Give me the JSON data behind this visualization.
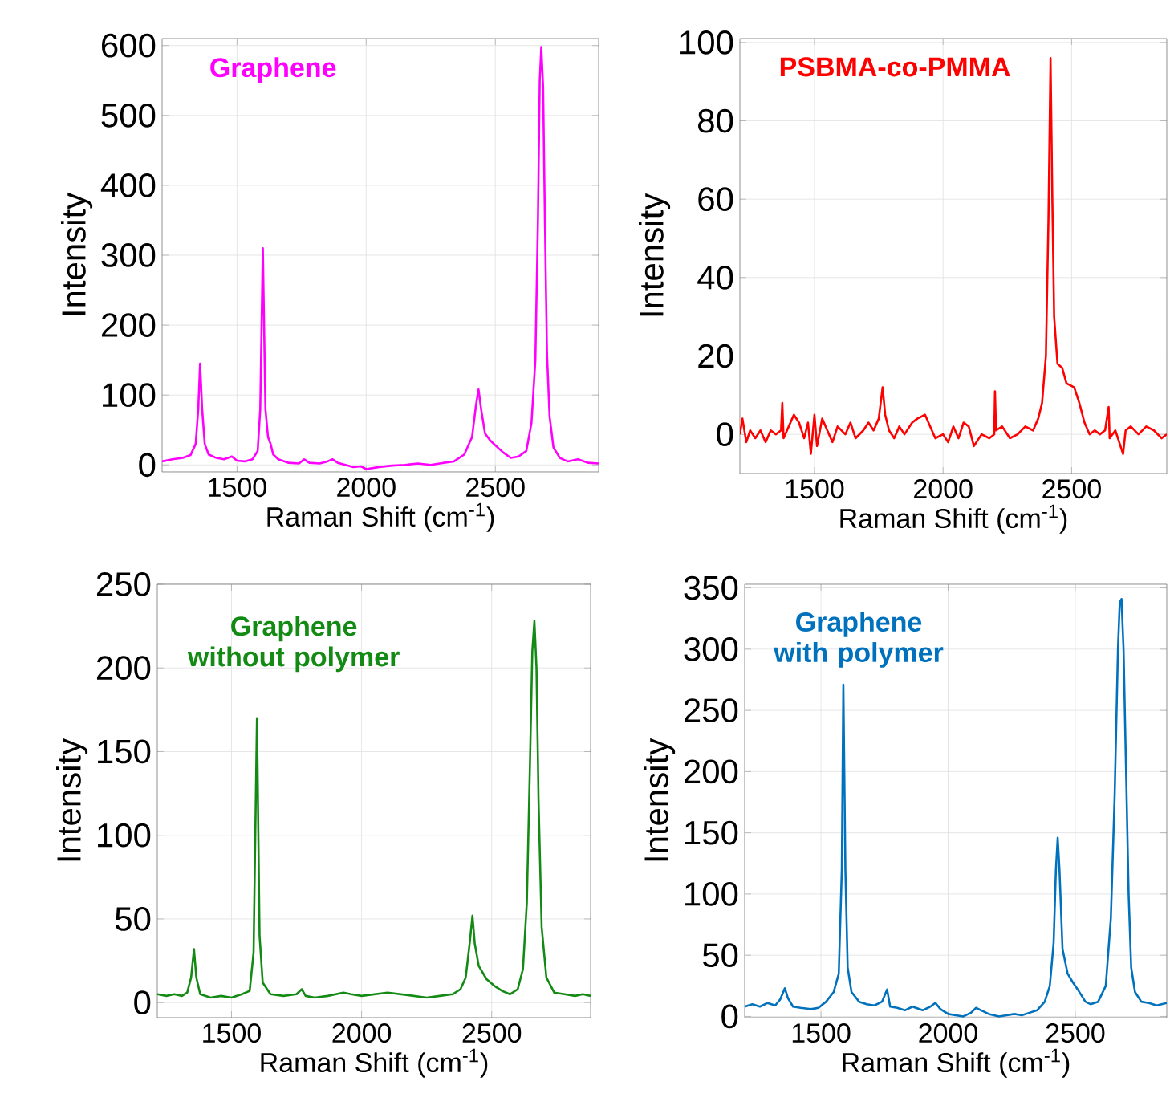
{
  "chart_data": [
    {
      "type": "line",
      "title": "Graphene",
      "xlabel": "Raman Shift (cm$^{-1}$)",
      "ylabel": "Intensity",
      "xlim": [
        1210,
        2900
      ],
      "ylim": [
        -10,
        610
      ],
      "xticks": [
        1500,
        2000,
        2500
      ],
      "yticks": [
        0,
        100,
        200,
        300,
        400,
        500,
        600
      ],
      "grid": true,
      "marker": "none",
      "line_style": "solid",
      "x": [
        1210,
        1250,
        1290,
        1320,
        1340,
        1350,
        1357,
        1365,
        1375,
        1390,
        1420,
        1450,
        1480,
        1500,
        1530,
        1560,
        1580,
        1590,
        1600,
        1610,
        1620,
        1630,
        1640,
        1660,
        1700,
        1740,
        1760,
        1780,
        1820,
        1850,
        1870,
        1890,
        1920,
        1950,
        1980,
        2000,
        2050,
        2100,
        2150,
        2200,
        2250,
        2300,
        2340,
        2380,
        2410,
        2425,
        2435,
        2445,
        2460,
        2480,
        2500,
        2530,
        2560,
        2590,
        2620,
        2640,
        2655,
        2665,
        2672,
        2678,
        2685,
        2692,
        2700,
        2710,
        2725,
        2750,
        2780,
        2820,
        2860,
        2900
      ],
      "series": [
        {
          "color": "#ff00ff",
          "values": [
            5,
            8,
            10,
            14,
            30,
            80,
            145,
            80,
            30,
            15,
            10,
            8,
            12,
            6,
            5,
            8,
            20,
            80,
            310,
            80,
            40,
            30,
            15,
            8,
            3,
            2,
            8,
            3,
            2,
            5,
            8,
            3,
            0,
            -3,
            -2,
            -6,
            -3,
            -1,
            0,
            2,
            0,
            3,
            5,
            15,
            40,
            85,
            108,
            80,
            45,
            35,
            28,
            18,
            10,
            12,
            20,
            60,
            150,
            350,
            550,
            598,
            540,
            350,
            160,
            70,
            25,
            10,
            5,
            8,
            3,
            2
          ]
        }
      ]
    },
    {
      "type": "line",
      "title": "PSBMA-co-PMMA",
      "xlabel": "Raman Shift (cm$^{-1}$)",
      "ylabel": "Intensity",
      "xlim": [
        1210,
        2870
      ],
      "ylim": [
        -10,
        101
      ],
      "xticks": [
        1500,
        2000,
        2500
      ],
      "yticks": [
        0,
        20,
        40,
        60,
        80,
        100
      ],
      "grid": true,
      "marker": "none",
      "line_style": "solid",
      "x": [
        1210,
        1220,
        1235,
        1250,
        1270,
        1290,
        1310,
        1330,
        1350,
        1370,
        1375,
        1380,
        1400,
        1420,
        1440,
        1460,
        1475,
        1486,
        1500,
        1510,
        1530,
        1550,
        1570,
        1590,
        1620,
        1640,
        1660,
        1690,
        1710,
        1730,
        1750,
        1765,
        1775,
        1790,
        1810,
        1830,
        1850,
        1880,
        1900,
        1930,
        1950,
        1970,
        2000,
        2020,
        2040,
        2060,
        2080,
        2100,
        2120,
        2150,
        2180,
        2199,
        2202,
        2206,
        2230,
        2260,
        2290,
        2320,
        2350,
        2370,
        2385,
        2400,
        2410,
        2418,
        2425,
        2432,
        2445,
        2463,
        2480,
        2510,
        2530,
        2550,
        2570,
        2590,
        2610,
        2630,
        2644,
        2648,
        2670,
        2700,
        2710,
        2730,
        2760,
        2790,
        2820,
        2850,
        2870
      ],
      "series": [
        {
          "color": "#ff0000",
          "values": [
            0,
            4,
            -2,
            1,
            -1,
            1,
            -2,
            1,
            0,
            1,
            8,
            -1,
            2,
            5,
            3,
            -1,
            3,
            -5,
            5,
            -3,
            4,
            1,
            -2,
            2,
            0,
            3,
            -1,
            1,
            3,
            1,
            4,
            12,
            5,
            1,
            -1,
            2,
            0,
            3,
            4,
            5,
            2,
            -1,
            0,
            -2,
            2,
            -1,
            3,
            2,
            -3,
            0,
            -1,
            0,
            11,
            1,
            2,
            -1,
            0,
            2,
            1,
            4,
            8,
            20,
            55,
            96,
            60,
            30,
            18,
            17,
            13,
            12,
            8,
            3,
            0,
            1,
            0,
            1,
            7,
            -1,
            1,
            -5,
            1,
            2,
            0,
            2,
            1,
            -1,
            0
          ]
        }
      ]
    },
    {
      "type": "line",
      "title": "Graphene without polymer",
      "xlabel": "Raman Shift (cm$^{-1}$)",
      "ylabel": "Intensity",
      "xlim": [
        1215,
        2880
      ],
      "ylim": [
        -9,
        250
      ],
      "xticks": [
        1500,
        2000,
        2500
      ],
      "yticks": [
        0,
        50,
        100,
        150,
        200,
        250
      ],
      "grid": true,
      "marker": "none",
      "line_style": "solid",
      "x": [
        1215,
        1250,
        1280,
        1310,
        1330,
        1345,
        1356,
        1365,
        1380,
        1420,
        1460,
        1500,
        1540,
        1570,
        1585,
        1598,
        1608,
        1620,
        1650,
        1700,
        1750,
        1770,
        1785,
        1820,
        1870,
        1900,
        1930,
        1960,
        2000,
        2050,
        2100,
        2150,
        2200,
        2250,
        2300,
        2350,
        2380,
        2400,
        2415,
        2426,
        2435,
        2450,
        2480,
        2510,
        2540,
        2570,
        2600,
        2620,
        2635,
        2648,
        2656,
        2664,
        2672,
        2680,
        2692,
        2710,
        2740,
        2780,
        2820,
        2850,
        2880
      ],
      "series": [
        {
          "color": "#138a13",
          "values": [
            5,
            4,
            5,
            4,
            6,
            15,
            32,
            15,
            5,
            3,
            4,
            3,
            5,
            7,
            30,
            170,
            40,
            12,
            5,
            4,
            5,
            8,
            4,
            3,
            4,
            5,
            6,
            5,
            4,
            5,
            6,
            5,
            4,
            3,
            4,
            5,
            8,
            15,
            35,
            52,
            35,
            22,
            14,
            10,
            7,
            5,
            8,
            20,
            60,
            150,
            210,
            228,
            200,
            120,
            45,
            15,
            6,
            5,
            4,
            5,
            4
          ]
        }
      ]
    },
    {
      "type": "line",
      "title": "Graphene with polymer",
      "xlabel": "Raman Shift (cm$^{-1}$)",
      "ylabel": "Intensity",
      "xlim": [
        1200,
        2860
      ],
      "ylim": [
        -1,
        353
      ],
      "xticks": [
        1500,
        2000,
        2500
      ],
      "yticks": [
        0,
        50,
        100,
        150,
        200,
        250,
        300,
        350
      ],
      "grid": true,
      "marker": "none",
      "line_style": "solid",
      "x": [
        1200,
        1230,
        1260,
        1290,
        1320,
        1340,
        1358,
        1370,
        1390,
        1420,
        1460,
        1490,
        1520,
        1550,
        1570,
        1582,
        1588,
        1596,
        1605,
        1620,
        1650,
        1680,
        1710,
        1740,
        1760,
        1772,
        1800,
        1830,
        1860,
        1900,
        1930,
        1950,
        1970,
        2000,
        2030,
        2060,
        2090,
        2110,
        2130,
        2160,
        2200,
        2230,
        2260,
        2290,
        2320,
        2350,
        2380,
        2400,
        2415,
        2424,
        2431,
        2438,
        2450,
        2470,
        2490,
        2510,
        2540,
        2560,
        2590,
        2620,
        2640,
        2655,
        2668,
        2675,
        2682,
        2690,
        2700,
        2710,
        2720,
        2735,
        2760,
        2790,
        2820,
        2860
      ],
      "series": [
        {
          "color": "#0072bd",
          "values": [
            8,
            10,
            8,
            11,
            9,
            14,
            23,
            15,
            8,
            7,
            6,
            7,
            12,
            20,
            35,
            120,
            271,
            120,
            40,
            20,
            12,
            10,
            9,
            12,
            22,
            8,
            7,
            5,
            8,
            5,
            8,
            11,
            6,
            2,
            1,
            0,
            3,
            7,
            5,
            2,
            0,
            1,
            2,
            1,
            3,
            5,
            12,
            25,
            60,
            120,
            146,
            120,
            55,
            35,
            28,
            22,
            12,
            10,
            12,
            25,
            80,
            180,
            300,
            338,
            341,
            300,
            200,
            100,
            40,
            20,
            12,
            11,
            9,
            11
          ]
        }
      ]
    }
  ]
}
